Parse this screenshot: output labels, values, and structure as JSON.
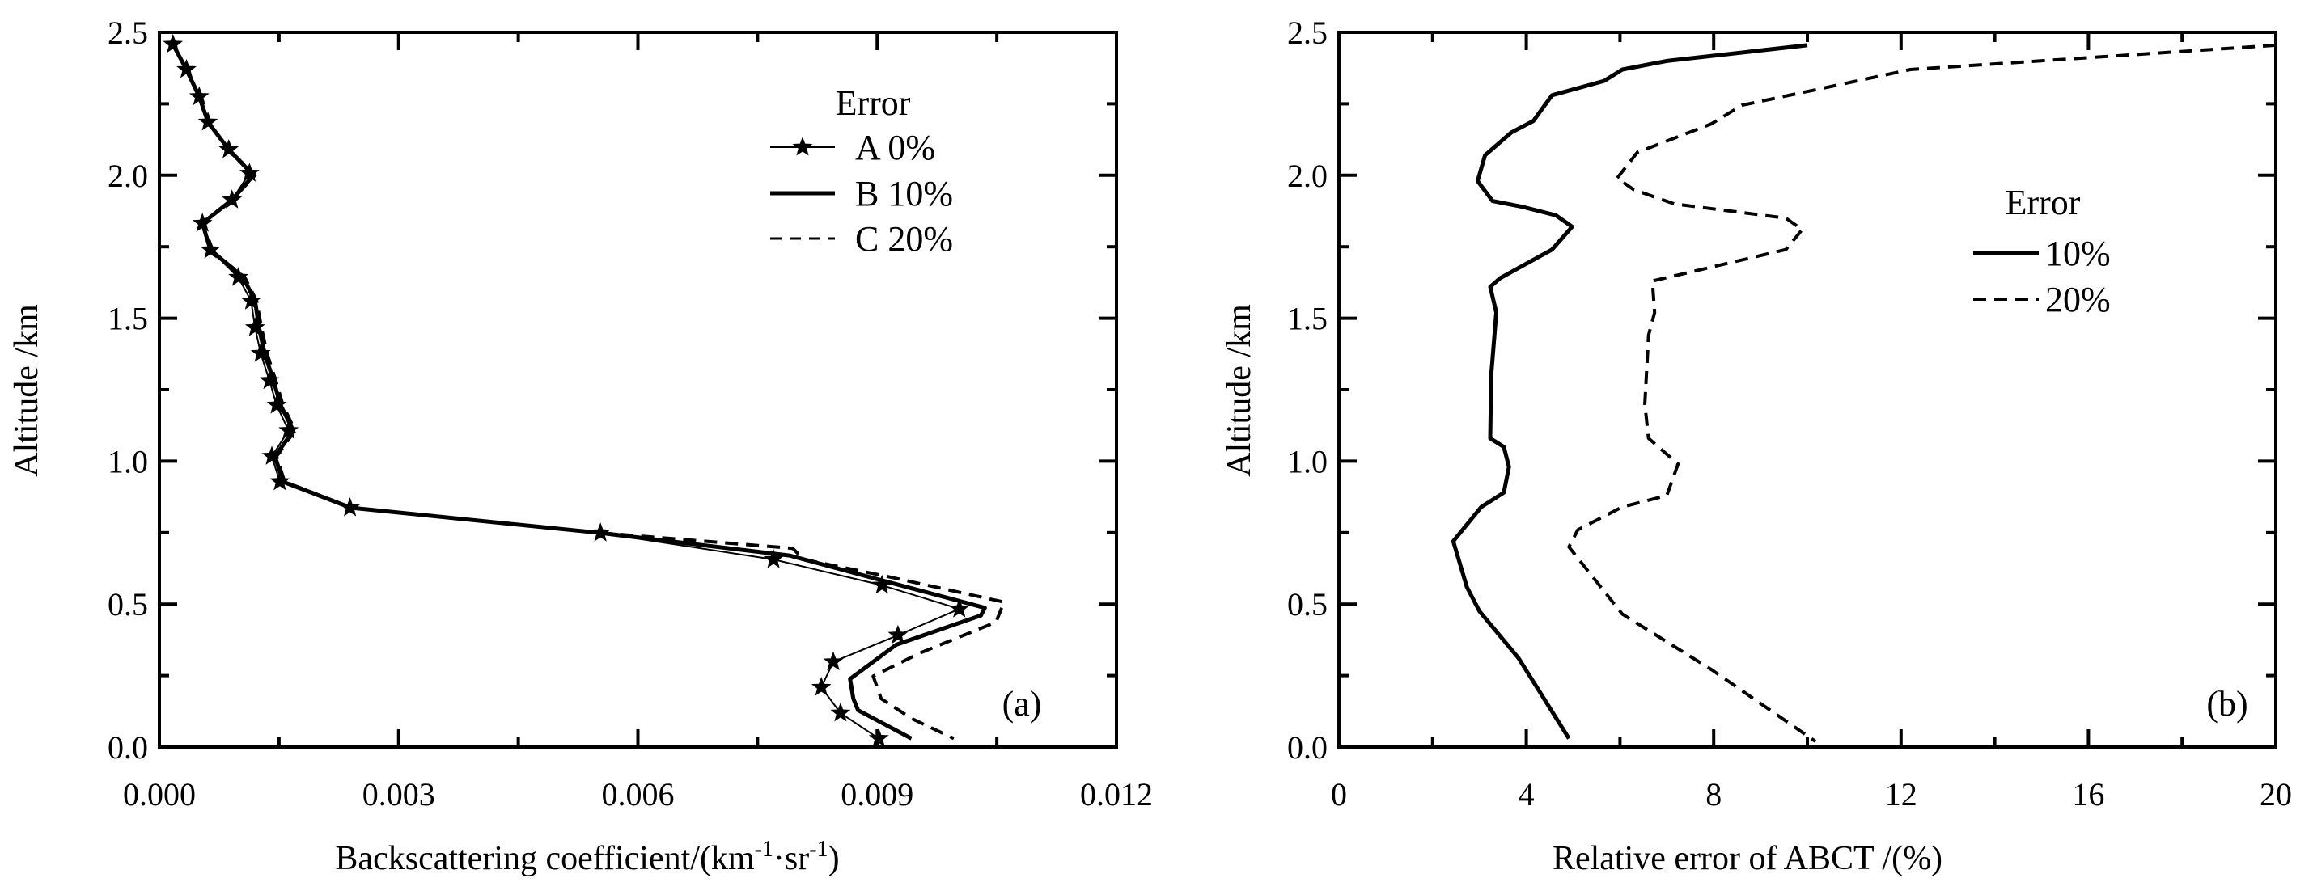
{
  "chart_data": [
    {
      "type": "line",
      "panel_label": "(a)",
      "xlabel": "Backscattering coefficient/(km",
      "xlabel_sup1": "-1",
      "xlabel_mid": "·sr",
      "xlabel_sup2": "-1",
      "xlabel_end": ")",
      "ylabel": "Altitude /km",
      "xlim": [
        0,
        0.012
      ],
      "ylim": [
        0,
        2.5
      ],
      "xticks": [
        "0.000",
        "0.003",
        "0.006",
        "0.009",
        "0.012"
      ],
      "xtick_values": [
        0,
        0.003,
        0.006,
        0.009,
        0.012
      ],
      "yticks": [
        "0.0",
        "0.5",
        "1.0",
        "1.5",
        "2.0",
        "2.5"
      ],
      "ytick_values": [
        0,
        0.5,
        1.0,
        1.5,
        2.0,
        2.5
      ],
      "legend": {
        "title": "Error",
        "placement": "top-right"
      },
      "series": [
        {
          "name": "A 0%",
          "style": "thin-star",
          "points": [
            [
              0.00017,
              2.458
            ],
            [
              0.00034,
              2.37
            ],
            [
              0.0005,
              2.275
            ],
            [
              0.00061,
              2.186
            ],
            [
              0.00087,
              2.09
            ],
            [
              0.00113,
              2.007
            ],
            [
              0.00091,
              1.914
            ],
            [
              0.00054,
              1.832
            ],
            [
              0.00064,
              1.739
            ],
            [
              0.00099,
              1.643
            ],
            [
              0.00115,
              1.56
            ],
            [
              0.0012,
              1.467
            ],
            [
              0.00127,
              1.377
            ],
            [
              0.00138,
              1.282
            ],
            [
              0.00147,
              1.196
            ],
            [
              0.00162,
              1.107
            ],
            [
              0.00141,
              1.017
            ],
            [
              0.00151,
              0.928
            ],
            [
              0.00239,
              0.837
            ],
            [
              0.00553,
              0.749
            ],
            [
              0.0077,
              0.656
            ],
            [
              0.00906,
              0.566
            ],
            [
              0.01003,
              0.483
            ],
            [
              0.00926,
              0.391
            ],
            [
              0.00845,
              0.298
            ],
            [
              0.0083,
              0.209
            ],
            [
              0.00854,
              0.119
            ],
            [
              0.00902,
              0.03
            ]
          ]
        },
        {
          "name": "B 10%",
          "style": "thick",
          "points": [
            [
              0.00017,
              2.458
            ],
            [
              0.00034,
              2.37
            ],
            [
              0.0005,
              2.275
            ],
            [
              0.00061,
              2.186
            ],
            [
              0.00087,
              2.09
            ],
            [
              0.00118,
              2.0
            ],
            [
              0.00091,
              1.914
            ],
            [
              0.00054,
              1.832
            ],
            [
              0.00064,
              1.739
            ],
            [
              0.00105,
              1.643
            ],
            [
              0.0012,
              1.56
            ],
            [
              0.00125,
              1.467
            ],
            [
              0.00132,
              1.377
            ],
            [
              0.00143,
              1.282
            ],
            [
              0.00152,
              1.196
            ],
            [
              0.00168,
              1.107
            ],
            [
              0.00145,
              1.017
            ],
            [
              0.00155,
              0.928
            ],
            [
              0.0024,
              0.837
            ],
            [
              0.00553,
              0.749
            ],
            [
              0.0079,
              0.67
            ],
            [
              0.0091,
              0.58
            ],
            [
              0.01035,
              0.487
            ],
            [
              0.0103,
              0.46
            ],
            [
              0.00924,
              0.358
            ],
            [
              0.00866,
              0.238
            ],
            [
              0.0087,
              0.17
            ],
            [
              0.00876,
              0.129
            ],
            [
              0.00943,
              0.03
            ]
          ]
        },
        {
          "name": "C 20%",
          "style": "dashed",
          "points": [
            [
              0.00017,
              2.458
            ],
            [
              0.00034,
              2.37
            ],
            [
              0.0005,
              2.275
            ],
            [
              0.00061,
              2.186
            ],
            [
              0.00087,
              2.09
            ],
            [
              0.0012,
              2.0
            ],
            [
              0.00091,
              1.914
            ],
            [
              0.00054,
              1.832
            ],
            [
              0.00064,
              1.739
            ],
            [
              0.00107,
              1.643
            ],
            [
              0.00122,
              1.56
            ],
            [
              0.00128,
              1.467
            ],
            [
              0.00135,
              1.377
            ],
            [
              0.00146,
              1.282
            ],
            [
              0.00155,
              1.196
            ],
            [
              0.0017,
              1.107
            ],
            [
              0.00147,
              1.017
            ],
            [
              0.00157,
              0.928
            ],
            [
              0.00241,
              0.837
            ],
            [
              0.00555,
              0.749
            ],
            [
              0.00794,
              0.695
            ],
            [
              0.00808,
              0.656
            ],
            [
              0.00914,
              0.596
            ],
            [
              0.01059,
              0.507
            ],
            [
              0.01049,
              0.437
            ],
            [
              0.00953,
              0.328
            ],
            [
              0.00895,
              0.248
            ],
            [
              0.00905,
              0.169
            ],
            [
              0.00943,
              0.1
            ],
            [
              0.00996,
              0.03
            ]
          ]
        }
      ]
    },
    {
      "type": "line",
      "panel_label": "(b)",
      "xlabel": "Relative error  of ABCT /(%)",
      "ylabel": "Altitude /km",
      "xlim": [
        0,
        20
      ],
      "ylim": [
        0,
        2.5
      ],
      "xticks": [
        "0",
        "4",
        "8",
        "12",
        "16",
        "20"
      ],
      "xtick_values": [
        0,
        4,
        8,
        12,
        16,
        20
      ],
      "yticks": [
        "0.0",
        "0.5",
        "1.0",
        "1.5",
        "2.0",
        "2.5"
      ],
      "ytick_values": [
        0,
        0.5,
        1.0,
        1.5,
        2.0,
        2.5
      ],
      "legend": {
        "title": "Error",
        "placement": "center-right"
      },
      "series": [
        {
          "name": "10%",
          "style": "thick",
          "points": [
            [
              10.0,
              2.455
            ],
            [
              7.0,
              2.4
            ],
            [
              6.05,
              2.37
            ],
            [
              5.66,
              2.33
            ],
            [
              4.55,
              2.28
            ],
            [
              4.15,
              2.19
            ],
            [
              3.68,
              2.15
            ],
            [
              3.12,
              2.07
            ],
            [
              2.96,
              1.98
            ],
            [
              3.28,
              1.91
            ],
            [
              3.91,
              1.89
            ],
            [
              4.63,
              1.86
            ],
            [
              4.98,
              1.82
            ],
            [
              4.55,
              1.74
            ],
            [
              3.44,
              1.64
            ],
            [
              3.23,
              1.61
            ],
            [
              3.36,
              1.52
            ],
            [
              3.25,
              1.3
            ],
            [
              3.23,
              1.08
            ],
            [
              3.52,
              1.05
            ],
            [
              3.63,
              0.98
            ],
            [
              3.52,
              0.89
            ],
            [
              3.04,
              0.84
            ],
            [
              2.44,
              0.72
            ],
            [
              2.73,
              0.56
            ],
            [
              3.0,
              0.475
            ],
            [
              3.84,
              0.31
            ],
            [
              4.91,
              0.03
            ]
          ]
        },
        {
          "name": "20%",
          "style": "dashed",
          "points": [
            [
              20,
              2.455
            ],
            [
              12.2,
              2.37
            ],
            [
              10.2,
              2.3
            ],
            [
              8.6,
              2.245
            ],
            [
              7.95,
              2.18
            ],
            [
              6.37,
              2.08
            ],
            [
              5.94,
              1.99
            ],
            [
              6.29,
              1.95
            ],
            [
              7.16,
              1.9
            ],
            [
              9.54,
              1.85
            ],
            [
              9.89,
              1.81
            ],
            [
              9.54,
              1.74
            ],
            [
              6.69,
              1.63
            ],
            [
              6.74,
              1.52
            ],
            [
              6.61,
              1.44
            ],
            [
              6.53,
              1.2
            ],
            [
              6.61,
              1.08
            ],
            [
              7.24,
              0.99
            ],
            [
              7.0,
              0.88
            ],
            [
              6.05,
              0.84
            ],
            [
              5.1,
              0.76
            ],
            [
              4.91,
              0.7
            ],
            [
              6.05,
              0.465
            ],
            [
              7.96,
              0.27
            ],
            [
              10.17,
              0.02
            ]
          ]
        }
      ]
    }
  ]
}
